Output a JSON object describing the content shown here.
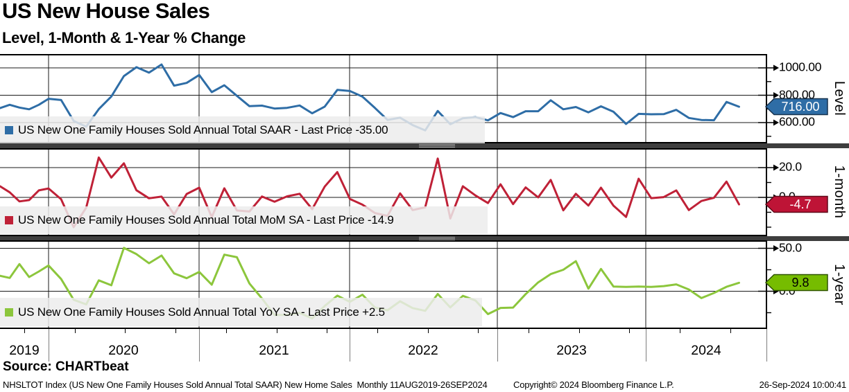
{
  "header": {
    "title": "US New House Sales",
    "subtitle": "Level, 1-Month & 1-Year % Change"
  },
  "panels": [
    {
      "axis_title": "Level",
      "legend_label": "US New One Family Houses Sold Annual Total SAAR - Last Price -35.00",
      "tag_label": "716.00",
      "line_color": "#2E6DA6",
      "tag_fill": "#2E6DA6",
      "tag_text_color": "#FFFFFF",
      "tag_border": "#16324F"
    },
    {
      "axis_title": "1-month",
      "legend_label": "US New One Family Houses Sold Annual Total MoM SA - Last Price -14.9",
      "tag_label": "-4.7",
      "line_color": "#BF2137",
      "tag_fill": "#BE1436",
      "tag_text_color": "#FFFFFF",
      "tag_border": "#5E0818"
    },
    {
      "axis_title": "1-year",
      "legend_label": "US New One Family Houses Sold Annual Total YoY SA - Last Price +2.5",
      "tag_label": "9.8",
      "line_color": "#8CC63C",
      "tag_fill": "#76BC00",
      "tag_text_color": "#000000",
      "tag_border": "#2F5200"
    }
  ],
  "x_axis": {
    "years": [
      "2019",
      "2020",
      "2021",
      "2022",
      "2023",
      "2024"
    ]
  },
  "source_label": "Source: CHARTbeat",
  "footer": {
    "left": "NHSLTOT Index (US New One Family Houses Sold Annual Total SAAR) New Home Sales  Monthly 11AUG2019-26SEP2024",
    "center": "Copyright© 2024 Bloomberg Finance L.P.",
    "right": "26-Sep-2024 10:00:41"
  },
  "chart_data": [
    {
      "type": "line",
      "name": "US New One Family Houses Sold Annual Total SAAR",
      "panel": "Level",
      "frequency": "monthly",
      "x_start": "Aug-2019",
      "x_end": "Aug-2024",
      "ylim": [
        448,
        1101
      ],
      "grid": "on",
      "y_ticks": [
        {
          "label": "1000.00",
          "value": 1000
        },
        {
          "label": "800.00",
          "value": 800
        },
        {
          "label": "600.00",
          "value": 600
        }
      ],
      "last_value": 716.0,
      "values": [
        706,
        730,
        710,
        697,
        730,
        774,
        765,
        612,
        570,
        698,
        791,
        940,
        1005,
        965,
        1025,
        870,
        890,
        948,
        823,
        873,
        796,
        720,
        724,
        703,
        708,
        725,
        668,
        717,
        839,
        831,
        790,
        707,
        619,
        636,
        582,
        543,
        685,
        588,
        632,
        640,
        616,
        670,
        640,
        683,
        683,
        763,
        697,
        714,
        675,
        719,
        679,
        590,
        664,
        661,
        662,
        693,
        634,
        619,
        617,
        751,
        716
      ]
    },
    {
      "type": "line",
      "name": "US New One Family Houses Sold Annual Total MoM SA",
      "panel": "1-month",
      "frequency": "monthly",
      "x_start": "Aug-2019",
      "x_end": "Aug-2024",
      "ylim": [
        -26,
        33
      ],
      "grid": "on",
      "y_ticks": [
        {
          "label": "20.0",
          "value": 20
        },
        {
          "label": "0.0",
          "value": 0
        }
      ],
      "last_value": -4.7,
      "values": [
        7.5,
        3.4,
        -2.7,
        -1.8,
        4.7,
        6.0,
        -1.2,
        -20.0,
        -6.9,
        26.8,
        13.3,
        22.9,
        4.8,
        -0.6,
        0.5,
        -11.4,
        2.3,
        6.5,
        -13.2,
        6.1,
        -8.8,
        -9.5,
        0.6,
        -2.9,
        0.7,
        2.4,
        -7.9,
        7.3,
        17.0,
        -1.0,
        -4.9,
        -10.5,
        -12.4,
        2.7,
        -8.5,
        -6.7,
        26.1,
        -14.2,
        7.5,
        1.3,
        -3.8,
        8.8,
        -4.5,
        6.7,
        0.0,
        11.7,
        -8.7,
        2.4,
        -5.5,
        6.5,
        -5.6,
        -13.1,
        12.5,
        -0.5,
        0.2,
        4.7,
        -8.5,
        -2.4,
        -0.3,
        10.6,
        -4.7
      ]
    },
    {
      "type": "line",
      "name": "US New One Family Houses Sold Annual Total YoY SA",
      "panel": "1-year",
      "frequency": "monthly",
      "x_start": "Aug-2019",
      "x_end": "Aug-2024",
      "ylim": [
        -44,
        59
      ],
      "grid": "on",
      "y_ticks": [
        {
          "label": "50.0",
          "value": 50
        },
        {
          "label": "0.0",
          "value": 0
        }
      ],
      "last_value": 9.8,
      "values": [
        18.0,
        15.5,
        31.6,
        16.5,
        23.0,
        30.0,
        14.3,
        -9.9,
        -15.3,
        12.7,
        6.9,
        50.5,
        43.2,
        32.6,
        41.5,
        20.8,
        15.2,
        22.5,
        7.6,
        42.6,
        39.6,
        9.0,
        -8.5,
        -27.7,
        -27.5,
        -25.3,
        -31.6,
        -17.1,
        -5.2,
        -12.3,
        -4.0,
        -19.0,
        -22.2,
        -11.7,
        -19.6,
        -22.8,
        -3.2,
        -18.9,
        -5.4,
        -10.7,
        -26.6,
        -19.4,
        -19.0,
        -3.4,
        10.3,
        20.0,
        25.0,
        35.0,
        3.0,
        26.0,
        5.5,
        5.0,
        5.5,
        5.0,
        6.0,
        8.0,
        2.0,
        -8.0,
        -2.0,
        5.2,
        9.8
      ]
    }
  ]
}
